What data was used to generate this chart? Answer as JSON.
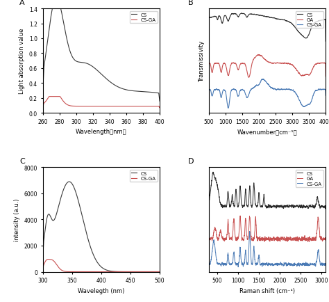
{
  "panel_A": {
    "label": "A",
    "xlabel": "Wavelength（nm）",
    "ylabel": "Light absorption value",
    "xlim": [
      260,
      400
    ],
    "ylim": [
      0,
      1.4
    ],
    "yticks": [
      0.0,
      0.2,
      0.4,
      0.6,
      0.8,
      1.0,
      1.2,
      1.4
    ],
    "xticks": [
      260,
      280,
      300,
      320,
      340,
      360,
      380,
      400
    ],
    "cs_color": "#3a3a3a",
    "csga_color": "#c85050",
    "legend": [
      "CS",
      "CS-GA"
    ]
  },
  "panel_B": {
    "label": "B",
    "xlabel": "Wavenumber（cm⁻¹）",
    "ylabel": "Transmissivity",
    "xlim": [
      500,
      4000
    ],
    "xticks": [
      500,
      1000,
      1500,
      2000,
      2500,
      3000,
      3500,
      4000
    ],
    "cs_color": "#2a2a2a",
    "ga_color": "#c85050",
    "csga_color": "#4a7ab5",
    "legend": [
      "CS",
      "GA",
      "CS-GA"
    ]
  },
  "panel_C": {
    "label": "C",
    "xlabel": "Wavelegth (nm)",
    "ylabel": "intensity (a.u.)",
    "xlim": [
      300,
      500
    ],
    "ylim": [
      0,
      8000
    ],
    "yticks": [
      0,
      2000,
      4000,
      6000,
      8000
    ],
    "xticks": [
      300,
      350,
      400,
      450,
      500
    ],
    "cs_color": "#3a3a3a",
    "csga_color": "#c85050",
    "legend": [
      "CS",
      "CS-GA"
    ]
  },
  "panel_D": {
    "label": "D",
    "xlabel": "Raman shift (cm⁻¹)",
    "ylabel": "",
    "xlim": [
      300,
      3100
    ],
    "xticks": [
      500,
      1000,
      1500,
      2000,
      2500,
      3000
    ],
    "cs_color": "#2a2a2a",
    "ga_color": "#c85050",
    "csga_color": "#4a7ab5",
    "legend": [
      "CS",
      "GA",
      "CS-GA"
    ]
  }
}
